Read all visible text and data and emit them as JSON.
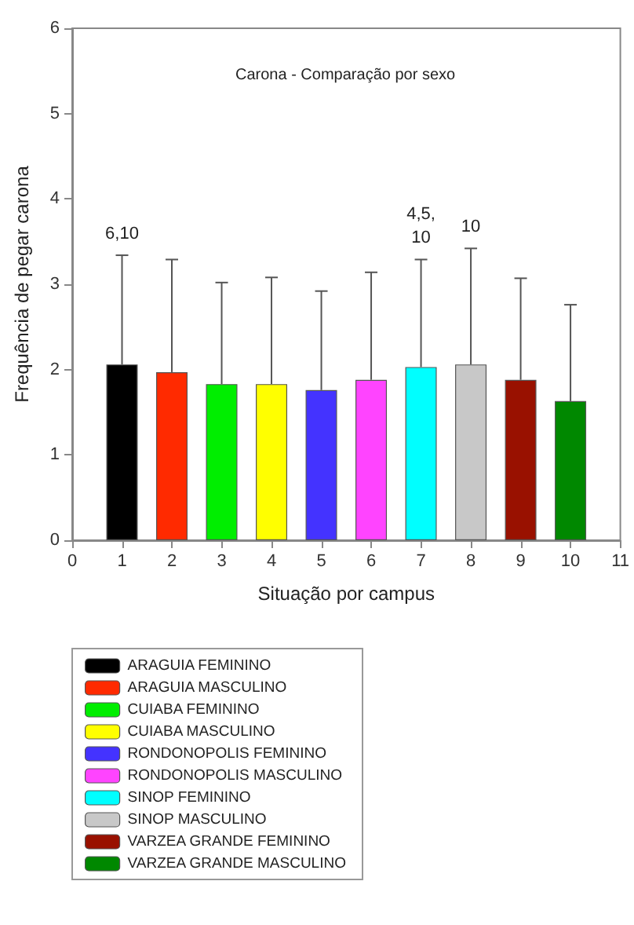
{
  "chart_data": {
    "type": "bar",
    "title": "Carona - Comparação por sexo",
    "xlabel": "Situação por campus",
    "ylabel": "Frequência de pegar carona",
    "xlim": [
      0,
      11
    ],
    "xticks": [
      0,
      1,
      2,
      3,
      4,
      5,
      6,
      7,
      8,
      9,
      10,
      11
    ],
    "ylim": [
      0,
      6
    ],
    "yticks": [
      0,
      1,
      2,
      3,
      4,
      5,
      6
    ],
    "grid": false,
    "legend": "bottom",
    "series": [
      {
        "name": "ARAGUIA FEMININO",
        "color": "#000000",
        "x": [
          1
        ],
        "values": [
          2.06
        ],
        "errors": [
          [
            2.06,
            3.34
          ]
        ]
      },
      {
        "name": "ARAGUIA MASCULINO",
        "color": "#ff2a00",
        "x": [
          2
        ],
        "values": [
          1.97
        ],
        "errors": [
          [
            1.97,
            3.29
          ]
        ]
      },
      {
        "name": "CUIABA FEMININO",
        "color": "#00ee00",
        "x": [
          3
        ],
        "values": [
          1.83
        ],
        "errors": [
          [
            1.83,
            3.02
          ]
        ]
      },
      {
        "name": "CUIABA MASCULINO",
        "color": "#ffff00",
        "x": [
          4
        ],
        "values": [
          1.83
        ],
        "errors": [
          [
            1.83,
            3.08
          ]
        ]
      },
      {
        "name": "RONDONOPOLIS FEMININO",
        "color": "#4433ff",
        "x": [
          5
        ],
        "values": [
          1.76
        ],
        "errors": [
          [
            1.76,
            2.92
          ]
        ]
      },
      {
        "name": "RONDONOPOLIS MASCULINO",
        "color": "#ff44ff",
        "x": [
          6
        ],
        "values": [
          1.88
        ],
        "errors": [
          [
            1.88,
            3.14
          ]
        ]
      },
      {
        "name": "SINOP FEMININO",
        "color": "#00ffff",
        "x": [
          7
        ],
        "values": [
          2.03
        ],
        "errors": [
          [
            2.03,
            3.29
          ]
        ]
      },
      {
        "name": "SINOP MASCULINO",
        "color": "#c8c8c8",
        "x": [
          8
        ],
        "values": [
          2.06
        ],
        "errors": [
          [
            2.06,
            3.42
          ]
        ]
      },
      {
        "name": "VARZEA GRANDE FEMININO",
        "color": "#991100",
        "x": [
          9
        ],
        "values": [
          1.88
        ],
        "errors": [
          [
            1.88,
            3.07
          ]
        ]
      },
      {
        "name": "VARZEA GRANDE MASCULINO",
        "color": "#008800",
        "x": [
          10
        ],
        "values": [
          1.63
        ],
        "errors": [
          [
            1.63,
            2.76
          ]
        ]
      }
    ],
    "annotations": [
      {
        "text": "6,10",
        "x": 1,
        "y": 3.34
      },
      {
        "text": "4,5,\n10",
        "x": 7,
        "y": 3.29
      },
      {
        "text": "10",
        "x": 8,
        "y": 3.42
      }
    ]
  }
}
